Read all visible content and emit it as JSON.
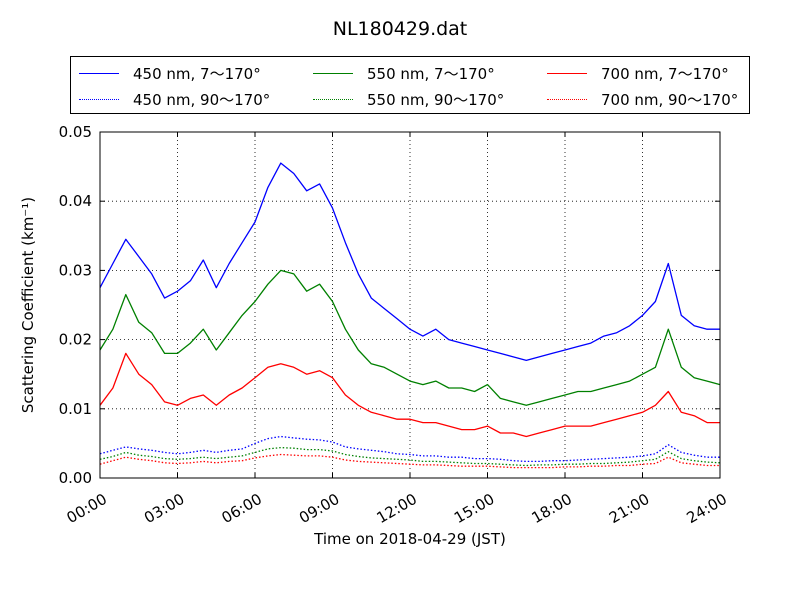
{
  "chart_data": {
    "type": "line",
    "title": "NL180429.dat",
    "xlabel": "Time on 2018-04-29 (JST)",
    "ylabel": "Scattering Coefficient (km⁻¹)",
    "x_ticks": [
      "00:00",
      "03:00",
      "06:00",
      "09:00",
      "12:00",
      "15:00",
      "18:00",
      "21:00",
      "24:00"
    ],
    "y_ticks": [
      "0.00",
      "0.01",
      "0.02",
      "0.03",
      "0.04",
      "0.05"
    ],
    "xlim_hours": [
      0,
      24
    ],
    "ylim": [
      0,
      0.05
    ],
    "grid": true,
    "legend_placement": "top, outside plot, 3 columns",
    "x_hours": [
      0,
      0.5,
      1,
      1.5,
      2,
      2.5,
      3,
      3.5,
      4,
      4.5,
      5,
      5.5,
      6,
      6.5,
      7,
      7.5,
      8,
      8.5,
      9,
      9.5,
      10,
      10.5,
      11,
      11.5,
      12,
      12.5,
      13,
      13.5,
      14,
      14.5,
      15,
      15.5,
      16,
      16.5,
      17,
      17.5,
      18,
      18.5,
      19,
      19.5,
      20,
      20.5,
      21,
      21.5,
      22,
      22.5,
      23,
      23.5,
      24
    ],
    "series": [
      {
        "name": "450 nm, 7～170°",
        "color": "#0000ff",
        "style": "solid",
        "values": [
          0.0275,
          0.031,
          0.0345,
          0.032,
          0.0295,
          0.026,
          0.027,
          0.0285,
          0.0315,
          0.0275,
          0.031,
          0.034,
          0.037,
          0.042,
          0.0455,
          0.044,
          0.0415,
          0.0425,
          0.039,
          0.034,
          0.0295,
          0.026,
          0.0245,
          0.023,
          0.0215,
          0.0205,
          0.0215,
          0.02,
          0.0195,
          0.019,
          0.0185,
          0.018,
          0.0175,
          0.017,
          0.0175,
          0.018,
          0.0185,
          0.019,
          0.0195,
          0.0205,
          0.021,
          0.022,
          0.0235,
          0.0255,
          0.031,
          0.0235,
          0.022,
          0.0215,
          0.0215
        ]
      },
      {
        "name": "550 nm, 7～170°",
        "color": "#008000",
        "style": "solid",
        "values": [
          0.0185,
          0.0215,
          0.0265,
          0.0225,
          0.021,
          0.018,
          0.018,
          0.0195,
          0.0215,
          0.0185,
          0.021,
          0.0235,
          0.0255,
          0.028,
          0.03,
          0.0295,
          0.027,
          0.028,
          0.0255,
          0.0215,
          0.0185,
          0.0165,
          0.016,
          0.015,
          0.014,
          0.0135,
          0.014,
          0.013,
          0.013,
          0.0125,
          0.0135,
          0.0115,
          0.011,
          0.0105,
          0.011,
          0.0115,
          0.012,
          0.0125,
          0.0125,
          0.013,
          0.0135,
          0.014,
          0.015,
          0.016,
          0.0215,
          0.016,
          0.0145,
          0.014,
          0.0135
        ]
      },
      {
        "name": "700 nm, 7～170°",
        "color": "#ff0000",
        "style": "solid",
        "values": [
          0.0105,
          0.013,
          0.018,
          0.015,
          0.0135,
          0.011,
          0.0105,
          0.0115,
          0.012,
          0.0105,
          0.012,
          0.013,
          0.0145,
          0.016,
          0.0165,
          0.016,
          0.015,
          0.0155,
          0.0145,
          0.012,
          0.0105,
          0.0095,
          0.009,
          0.0085,
          0.0085,
          0.008,
          0.008,
          0.0075,
          0.007,
          0.007,
          0.0075,
          0.0065,
          0.0065,
          0.006,
          0.0065,
          0.007,
          0.0075,
          0.0075,
          0.0075,
          0.008,
          0.0085,
          0.009,
          0.0095,
          0.0105,
          0.0125,
          0.0095,
          0.009,
          0.008,
          0.008
        ]
      },
      {
        "name": "450 nm, 90～170°",
        "color": "#0000ff",
        "style": "dotted",
        "values": [
          0.0035,
          0.004,
          0.0045,
          0.0042,
          0.004,
          0.0037,
          0.0035,
          0.0037,
          0.004,
          0.0037,
          0.004,
          0.0042,
          0.005,
          0.0057,
          0.006,
          0.0058,
          0.0056,
          0.0055,
          0.0052,
          0.0045,
          0.0042,
          0.004,
          0.0038,
          0.0035,
          0.0034,
          0.0032,
          0.0032,
          0.003,
          0.003,
          0.0028,
          0.0028,
          0.0027,
          0.0025,
          0.0024,
          0.0024,
          0.0025,
          0.0025,
          0.0026,
          0.0027,
          0.0028,
          0.0029,
          0.003,
          0.0032,
          0.0035,
          0.0048,
          0.0037,
          0.0033,
          0.003,
          0.003
        ]
      },
      {
        "name": "550 nm, 90～170°",
        "color": "#008000",
        "style": "dotted",
        "values": [
          0.0027,
          0.0031,
          0.0037,
          0.0033,
          0.0031,
          0.0028,
          0.0027,
          0.0028,
          0.003,
          0.0028,
          0.003,
          0.0032,
          0.0037,
          0.0042,
          0.0044,
          0.0043,
          0.0041,
          0.0041,
          0.0039,
          0.0034,
          0.0031,
          0.0029,
          0.0028,
          0.0027,
          0.0026,
          0.0024,
          0.0024,
          0.0023,
          0.0022,
          0.0021,
          0.0021,
          0.002,
          0.0019,
          0.0018,
          0.0019,
          0.0019,
          0.002,
          0.002,
          0.0021,
          0.0021,
          0.0022,
          0.0023,
          0.0025,
          0.0027,
          0.0038,
          0.0028,
          0.0025,
          0.0023,
          0.0022
        ]
      },
      {
        "name": "700 nm, 90～170°",
        "color": "#ff0000",
        "style": "dotted",
        "values": [
          0.002,
          0.0025,
          0.003,
          0.0027,
          0.0025,
          0.0022,
          0.0021,
          0.0022,
          0.0024,
          0.0022,
          0.0024,
          0.0025,
          0.0029,
          0.0032,
          0.0034,
          0.0033,
          0.0032,
          0.0032,
          0.003,
          0.0026,
          0.0024,
          0.0023,
          0.0022,
          0.0021,
          0.002,
          0.0019,
          0.0019,
          0.0018,
          0.0017,
          0.0017,
          0.0017,
          0.0016,
          0.0015,
          0.0015,
          0.0015,
          0.0015,
          0.0016,
          0.0016,
          0.0017,
          0.0017,
          0.0018,
          0.0018,
          0.002,
          0.0021,
          0.003,
          0.0022,
          0.002,
          0.0018,
          0.0018
        ]
      }
    ]
  }
}
